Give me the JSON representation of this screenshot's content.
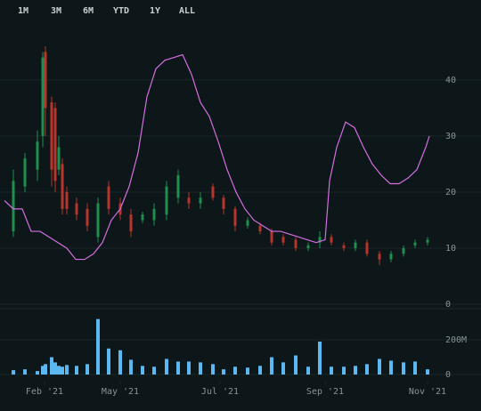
{
  "range_buttons": [
    "1M",
    "3M",
    "6M",
    "YTD",
    "1Y",
    "ALL"
  ],
  "chart_data": [
    {
      "type": "candlestick",
      "up_color": "#1f8f4e",
      "down_color": "#b8342c",
      "grid": true,
      "xlim": [
        0,
        485
      ],
      "ylim": [
        0,
        49.5
      ],
      "yticks": [
        0,
        10,
        20,
        30,
        40
      ],
      "x": [
        10,
        23,
        37,
        43,
        46,
        53,
        57,
        61,
        65,
        70,
        81,
        93,
        105,
        117,
        130,
        142,
        155,
        168,
        182,
        195,
        207,
        220,
        234,
        246,
        259,
        273,
        287,
        300,
        313,
        327,
        341,
        354,
        367,
        381,
        394,
        407,
        421,
        434,
        448,
        461,
        475
      ],
      "open": [
        13,
        21,
        24,
        30,
        45,
        36,
        35,
        24,
        25,
        20,
        18,
        17,
        12,
        21,
        18,
        16,
        15,
        15,
        16,
        19,
        19,
        18,
        21,
        19,
        17,
        14,
        14,
        13,
        12,
        11.5,
        10,
        11,
        12,
        10.5,
        10,
        11,
        9,
        8,
        9,
        10.5,
        11
      ],
      "high": [
        24,
        27,
        31,
        45,
        46,
        37,
        36,
        30,
        26,
        21,
        19,
        18,
        19,
        22,
        19,
        17,
        16.5,
        18,
        22,
        24,
        20,
        20,
        21.5,
        19.5,
        17.5,
        15.5,
        14.5,
        13.5,
        12.5,
        12,
        11,
        13,
        12.5,
        11,
        11.5,
        11.5,
        9.5,
        9.5,
        10.5,
        11.5,
        12
      ],
      "low": [
        12,
        20,
        22,
        28,
        30,
        21,
        20,
        23,
        16,
        16,
        15,
        13,
        11,
        16,
        15,
        12,
        14.5,
        14,
        15,
        18,
        17,
        17,
        18.5,
        16,
        13,
        13.5,
        12.5,
        10.5,
        10.5,
        9.5,
        9.5,
        10,
        10.5,
        9.5,
        9.5,
        8.5,
        7,
        7.5,
        8.5,
        10,
        10.5
      ],
      "close": [
        22,
        26,
        29,
        44,
        35,
        24,
        22,
        28,
        17,
        17,
        16,
        14,
        18,
        17,
        16,
        13,
        16,
        17,
        21,
        23,
        18,
        19,
        19,
        17,
        14,
        15,
        13,
        11,
        11,
        10,
        10.5,
        12,
        11,
        10,
        11,
        9,
        8,
        9,
        10,
        11,
        11.5
      ],
      "ma": {
        "color": "#d36ee0",
        "x": [
          0,
          10,
          20,
          30,
          40,
          55,
          70,
          80,
          90,
          100,
          110,
          120,
          130,
          140,
          150,
          160,
          170,
          180,
          190,
          200,
          210,
          220,
          230,
          240,
          250,
          260,
          270,
          280,
          290,
          300,
          310,
          320,
          330,
          340,
          350,
          360,
          365,
          373,
          383,
          393,
          403,
          413,
          423,
          433,
          443,
          453,
          463,
          473,
          477
        ],
        "values": [
          18.5,
          17,
          17,
          13,
          13,
          11.5,
          10,
          8,
          8,
          9,
          11,
          15,
          17,
          21,
          27,
          37,
          42,
          43.5,
          44,
          44.5,
          41,
          36,
          33.5,
          29,
          24,
          20,
          17,
          15,
          14,
          13,
          13,
          12.5,
          12,
          11.5,
          11,
          11.5,
          22,
          28,
          32.5,
          31.5,
          28,
          25,
          23,
          21.5,
          21.5,
          22.5,
          24,
          28,
          30
        ]
      }
    },
    {
      "type": "bar",
      "color": "#5bb8f0",
      "xlim": [
        0,
        485
      ],
      "ylim": [
        0,
        354
      ],
      "yticks": [
        0,
        {
          "value": 200,
          "label": "200M"
        }
      ],
      "xticks": [
        {
          "value": 45,
          "label": "Feb '21"
        },
        {
          "value": 130,
          "label": "May '21"
        },
        {
          "value": 242,
          "label": "Jul '21"
        },
        {
          "value": 360,
          "label": "Sep '21"
        },
        {
          "value": 475,
          "label": "Nov '21"
        }
      ],
      "x": [
        10,
        23,
        37,
        43,
        46,
        53,
        57,
        61,
        65,
        70,
        81,
        93,
        105,
        117,
        130,
        142,
        155,
        168,
        182,
        195,
        207,
        220,
        234,
        246,
        259,
        273,
        287,
        300,
        313,
        327,
        341,
        354,
        367,
        381,
        394,
        407,
        421,
        434,
        448,
        461,
        475
      ],
      "values": [
        25,
        30,
        20,
        50,
        60,
        100,
        70,
        50,
        45,
        55,
        50,
        60,
        320,
        150,
        140,
        85,
        50,
        45,
        90,
        75,
        75,
        70,
        60,
        30,
        45,
        40,
        50,
        100,
        70,
        110,
        45,
        190,
        45,
        45,
        50,
        60,
        90,
        80,
        70,
        75,
        30
      ]
    }
  ]
}
